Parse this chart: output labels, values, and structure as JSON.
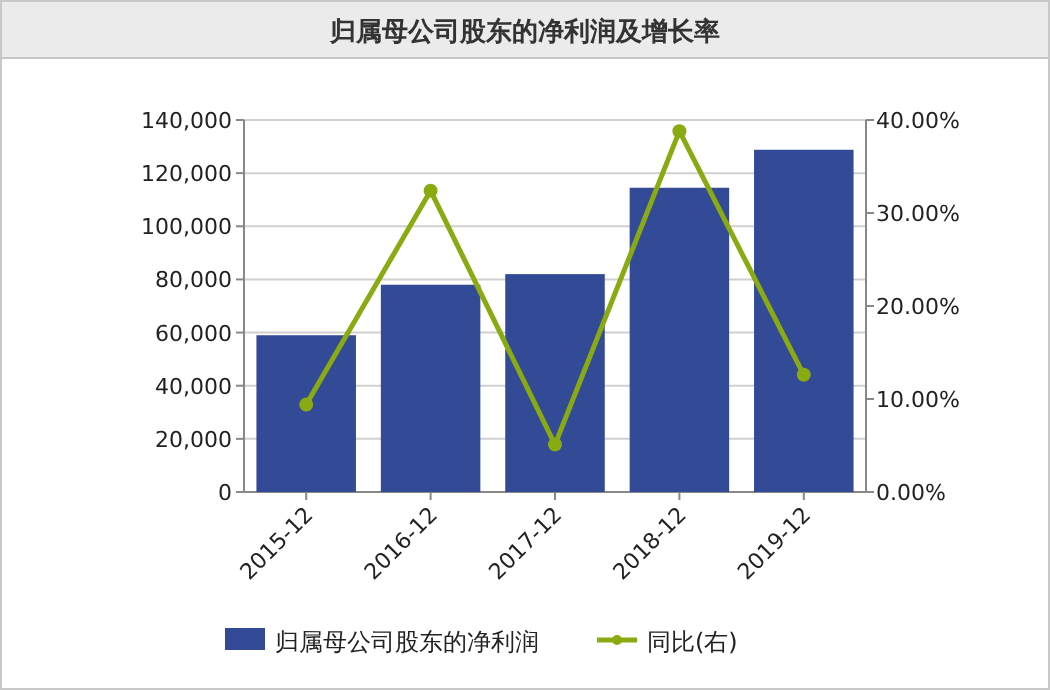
{
  "chart_data": {
    "type": "bar",
    "title": "归属母公司股东的净利润及增长率",
    "categories": [
      "2015-12",
      "2016-12",
      "2017-12",
      "2018-12",
      "2019-12"
    ],
    "series": [
      {
        "name": "归属母公司股东的净利润",
        "color": "#334a96",
        "values": [
          59000,
          78000,
          82000,
          114500,
          128800
        ]
      },
      {
        "name": "同比(右)",
        "type": "line",
        "axis": "y2",
        "color": "#8aaa12",
        "marker": "circle",
        "values": [
          9.4,
          32.4,
          5.1,
          38.8,
          12.6
        ]
      }
    ],
    "ylim": [
      0,
      140000
    ],
    "yticks": [
      {
        "value": 0,
        "label": "0"
      },
      {
        "value": 20000,
        "label": "20,000"
      },
      {
        "value": 40000,
        "label": "40,000"
      },
      {
        "value": 60000,
        "label": "60,000"
      },
      {
        "value": 80000,
        "label": "80,000"
      },
      {
        "value": 100000,
        "label": "100,000"
      },
      {
        "value": 120000,
        "label": "120,000"
      },
      {
        "value": 140000,
        "label": "140,000"
      }
    ],
    "y2lim": [
      0,
      40
    ],
    "y2ticks": [
      {
        "value": 0,
        "label": "0.00%"
      },
      {
        "value": 10,
        "label": "10.00%"
      },
      {
        "value": 20,
        "label": "20.00%"
      },
      {
        "value": 30,
        "label": "30.00%"
      },
      {
        "value": 40,
        "label": "40.00%"
      }
    ],
    "grid": "y",
    "legend": "bottom"
  }
}
